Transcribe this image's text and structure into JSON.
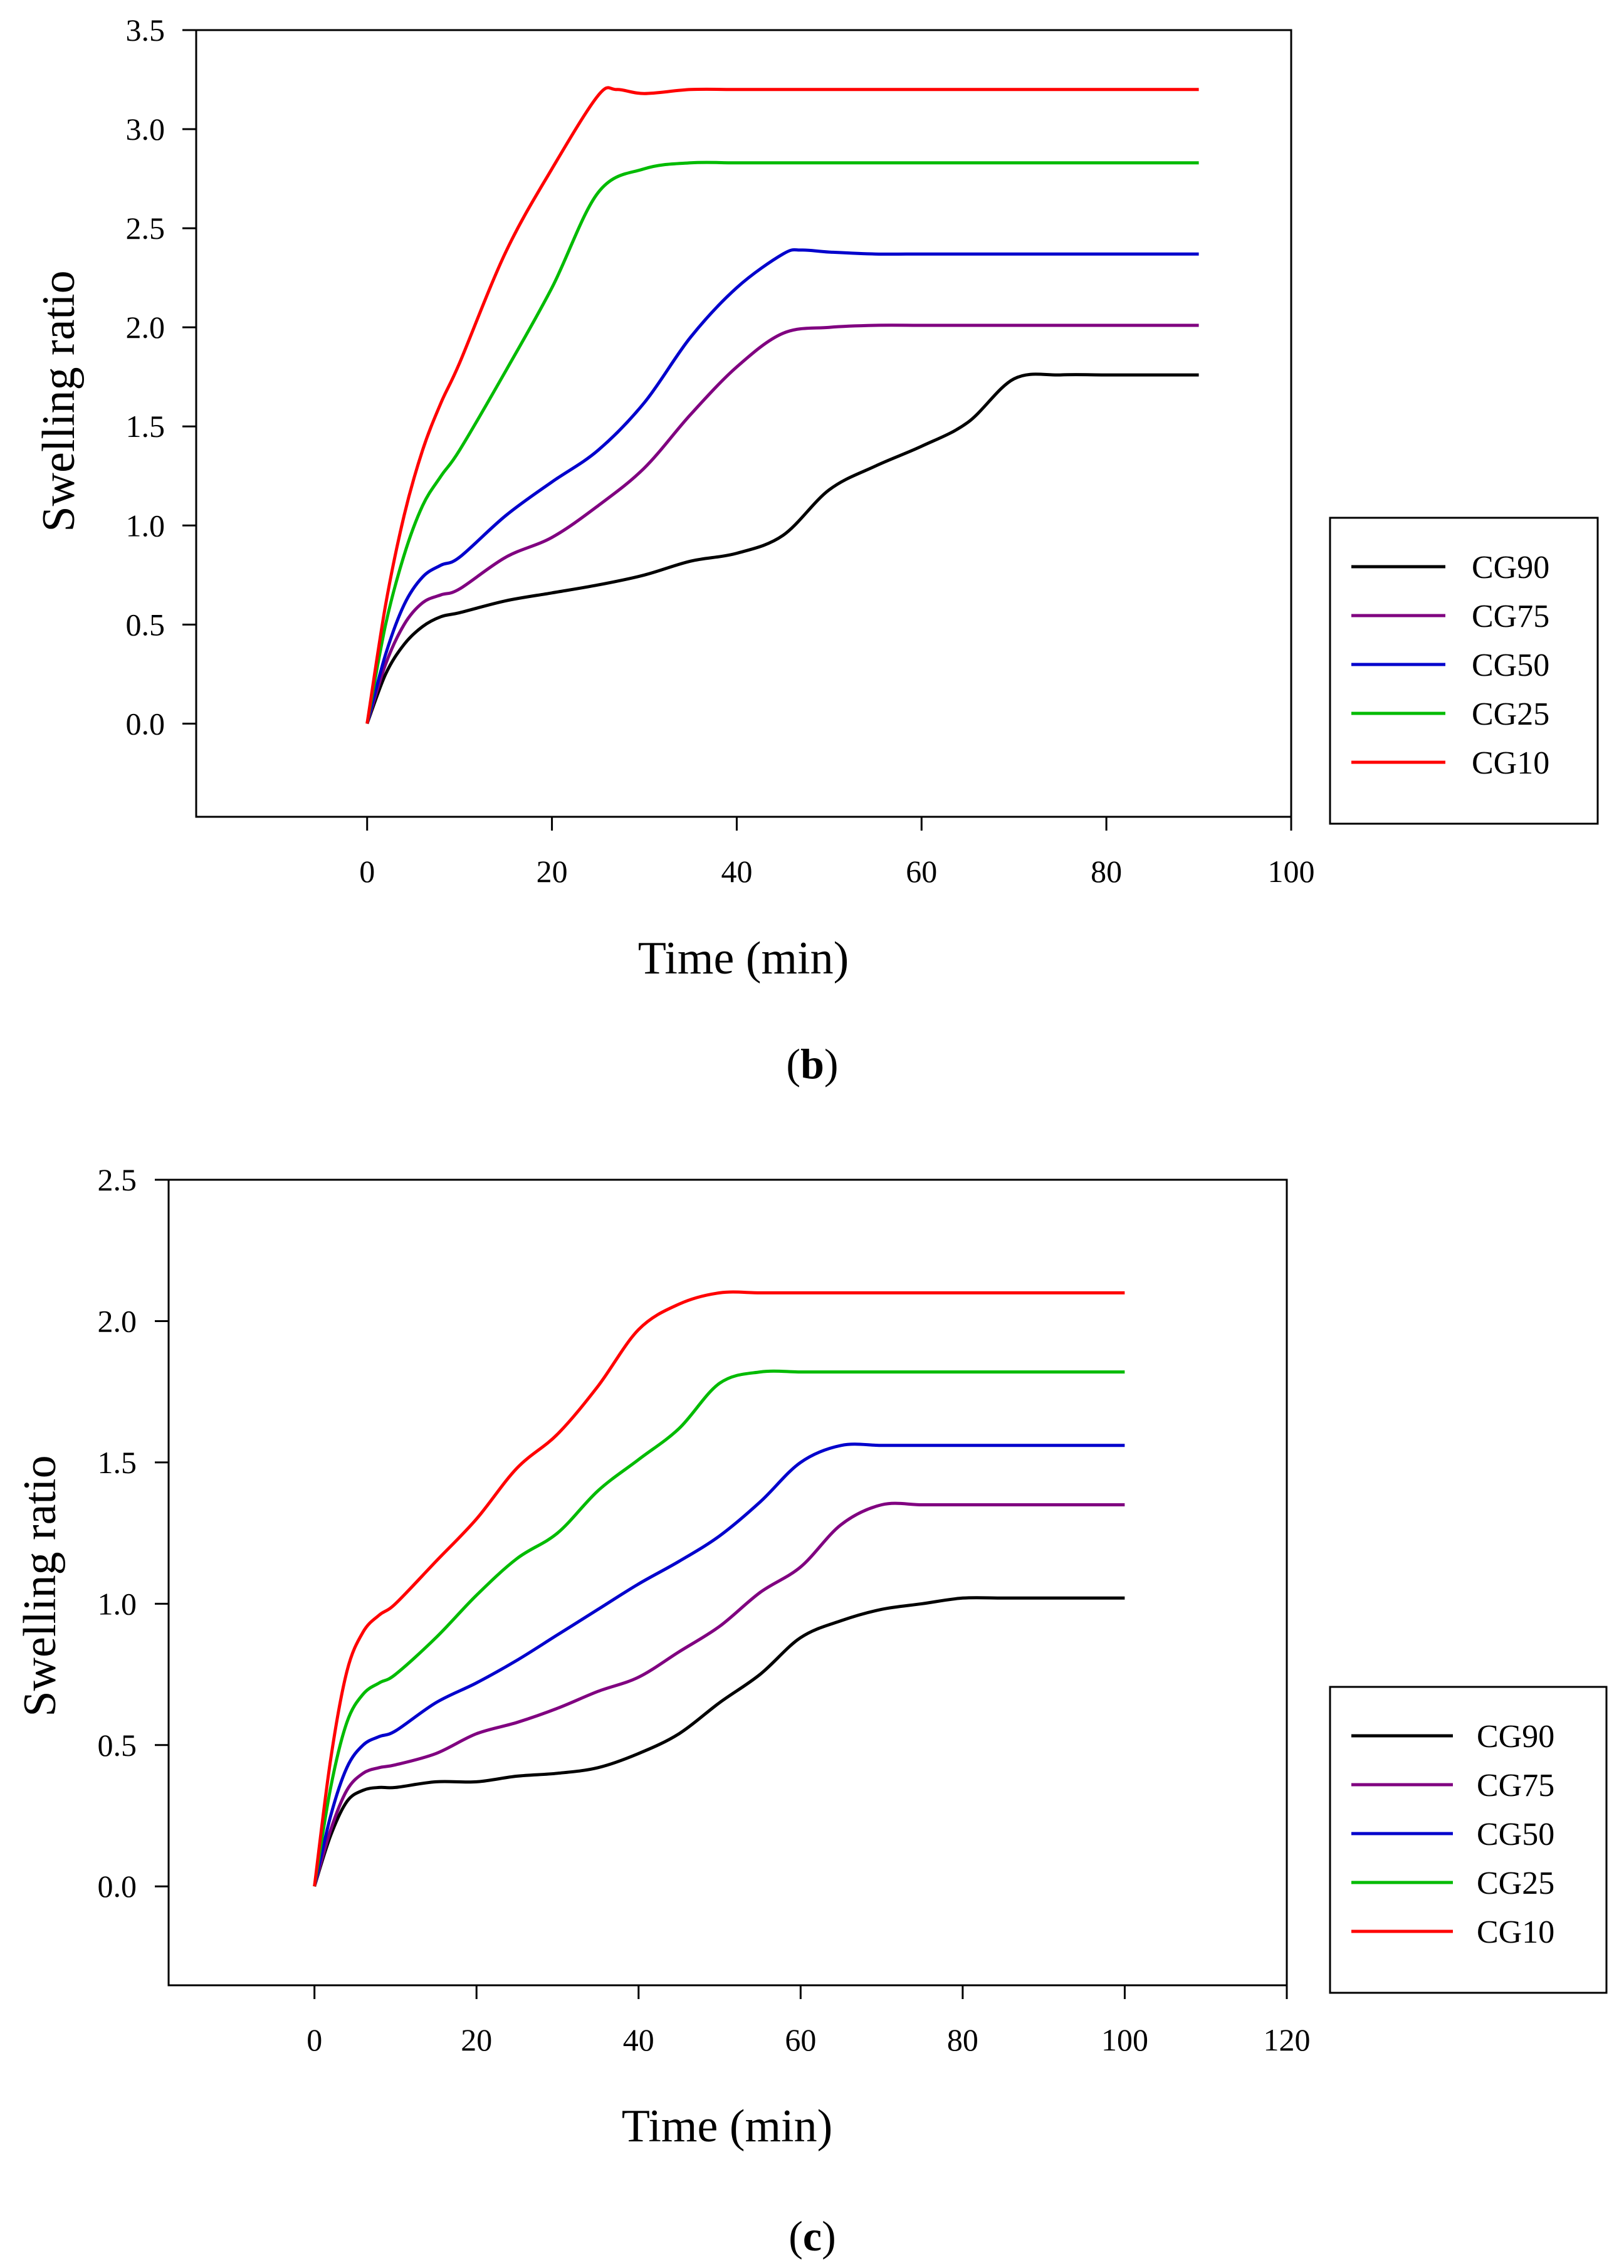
{
  "chart_data": [
    {
      "type": "line",
      "caption": "b",
      "xlabel": "Time (min)",
      "ylabel": "Swelling ratio",
      "xlim": [
        -18.5,
        100
      ],
      "ylim": [
        -0.47,
        3.5
      ],
      "x_ticks": [
        "0",
        "20",
        "40",
        "60",
        "80",
        "100"
      ],
      "y_ticks": [
        "0.0",
        "0.5",
        "1.0",
        "1.5",
        "2.0",
        "2.5",
        "3.0",
        "3.5"
      ],
      "grid": false,
      "legend_position": "right",
      "series": [
        {
          "name": "CG90",
          "color": "#000000",
          "x": [
            0,
            2,
            4,
            6,
            8,
            10,
            15,
            20,
            25,
            30,
            35,
            40,
            45,
            50,
            55,
            60,
            65,
            70,
            75,
            80,
            85,
            90
          ],
          "y": [
            0,
            0.25,
            0.4,
            0.49,
            0.54,
            0.56,
            0.62,
            0.66,
            0.7,
            0.75,
            0.82,
            0.86,
            0.95,
            1.18,
            1.3,
            1.4,
            1.52,
            1.74,
            1.76,
            1.76,
            1.76,
            1.76
          ]
        },
        {
          "name": "CG75",
          "color": "#800080",
          "x": [
            0,
            2,
            4,
            6,
            8,
            10,
            15,
            20,
            25,
            30,
            35,
            40,
            45,
            50,
            55,
            60,
            65,
            70,
            75,
            80,
            85,
            90
          ],
          "y": [
            0,
            0.3,
            0.5,
            0.61,
            0.65,
            0.68,
            0.84,
            0.94,
            1.1,
            1.29,
            1.56,
            1.8,
            1.97,
            2.0,
            2.01,
            2.01,
            2.01,
            2.01,
            2.01,
            2.01,
            2.01,
            2.01
          ]
        },
        {
          "name": "CG50",
          "color": "#0000cc",
          "x": [
            0,
            2,
            4,
            6,
            8,
            10,
            15,
            20,
            25,
            30,
            35,
            40,
            45,
            47,
            50,
            55,
            60,
            65,
            70,
            75,
            80,
            85,
            90
          ],
          "y": [
            0,
            0.35,
            0.6,
            0.74,
            0.8,
            0.84,
            1.05,
            1.22,
            1.38,
            1.62,
            1.95,
            2.2,
            2.37,
            2.39,
            2.38,
            2.37,
            2.37,
            2.37,
            2.37,
            2.37,
            2.37,
            2.37,
            2.37
          ]
        },
        {
          "name": "CG25",
          "color": "#00bb00",
          "x": [
            0,
            2,
            4,
            6,
            8,
            10,
            15,
            20,
            25,
            30,
            35,
            40,
            45,
            50,
            55,
            60,
            65,
            70,
            75,
            80,
            85,
            90
          ],
          "y": [
            0,
            0.5,
            0.85,
            1.1,
            1.25,
            1.38,
            1.78,
            2.2,
            2.68,
            2.8,
            2.83,
            2.83,
            2.83,
            2.83,
            2.83,
            2.83,
            2.83,
            2.83,
            2.83,
            2.83,
            2.83,
            2.83
          ]
        },
        {
          "name": "CG10",
          "color": "#ff0000",
          "x": [
            0,
            2,
            4,
            6,
            8,
            10,
            15,
            20,
            25,
            27,
            30,
            35,
            40,
            45,
            50,
            55,
            60,
            65,
            70,
            75,
            80,
            85,
            90
          ],
          "y": [
            0,
            0.6,
            1.05,
            1.38,
            1.62,
            1.82,
            2.38,
            2.8,
            3.17,
            3.2,
            3.18,
            3.2,
            3.2,
            3.2,
            3.2,
            3.2,
            3.2,
            3.2,
            3.2,
            3.2,
            3.2,
            3.2,
            3.2
          ]
        }
      ]
    },
    {
      "type": "line",
      "caption": "c",
      "xlabel": "Time (min)",
      "ylabel": "Swelling ratio",
      "xlim": [
        -18,
        120
      ],
      "ylim": [
        -0.35,
        2.5
      ],
      "x_ticks": [
        "0",
        "20",
        "40",
        "60",
        "80",
        "100",
        "120"
      ],
      "y_ticks": [
        "0.0",
        "0.5",
        "1.0",
        "1.5",
        "2.0",
        "2.5"
      ],
      "grid": false,
      "legend_position": "right",
      "series": [
        {
          "name": "CG90",
          "color": "#000000",
          "x": [
            0,
            2,
            4,
            6,
            8,
            10,
            15,
            20,
            25,
            30,
            35,
            40,
            45,
            50,
            55,
            60,
            65,
            70,
            75,
            80,
            85,
            90,
            95,
            100
          ],
          "y": [
            0,
            0.18,
            0.3,
            0.34,
            0.35,
            0.35,
            0.37,
            0.37,
            0.39,
            0.4,
            0.42,
            0.47,
            0.54,
            0.65,
            0.75,
            0.88,
            0.94,
            0.98,
            1.0,
            1.02,
            1.02,
            1.02,
            1.02,
            1.02
          ]
        },
        {
          "name": "CG75",
          "color": "#800080",
          "x": [
            0,
            2,
            4,
            6,
            8,
            10,
            15,
            20,
            25,
            30,
            35,
            40,
            45,
            50,
            55,
            60,
            65,
            70,
            75,
            80,
            85,
            90,
            95,
            100
          ],
          "y": [
            0,
            0.2,
            0.34,
            0.4,
            0.42,
            0.43,
            0.47,
            0.54,
            0.58,
            0.63,
            0.69,
            0.74,
            0.83,
            0.92,
            1.04,
            1.13,
            1.28,
            1.35,
            1.35,
            1.35,
            1.35,
            1.35,
            1.35,
            1.35
          ]
        },
        {
          "name": "CG50",
          "color": "#0000cc",
          "x": [
            0,
            2,
            4,
            6,
            8,
            10,
            15,
            20,
            25,
            30,
            35,
            40,
            45,
            50,
            55,
            60,
            65,
            70,
            75,
            80,
            85,
            90,
            95,
            100
          ],
          "y": [
            0,
            0.25,
            0.42,
            0.5,
            0.53,
            0.55,
            0.65,
            0.72,
            0.8,
            0.89,
            0.98,
            1.07,
            1.15,
            1.24,
            1.36,
            1.5,
            1.56,
            1.56,
            1.56,
            1.56,
            1.56,
            1.56,
            1.56,
            1.56
          ]
        },
        {
          "name": "CG25",
          "color": "#00bb00",
          "x": [
            0,
            2,
            4,
            6,
            8,
            10,
            15,
            20,
            25,
            30,
            35,
            40,
            45,
            50,
            55,
            60,
            65,
            70,
            75,
            80,
            85,
            90,
            95,
            100
          ],
          "y": [
            0,
            0.35,
            0.58,
            0.68,
            0.72,
            0.75,
            0.88,
            1.03,
            1.16,
            1.25,
            1.4,
            1.51,
            1.62,
            1.78,
            1.82,
            1.82,
            1.82,
            1.82,
            1.82,
            1.82,
            1.82,
            1.82,
            1.82,
            1.82
          ]
        },
        {
          "name": "CG10",
          "color": "#ff0000",
          "x": [
            0,
            2,
            4,
            6,
            8,
            10,
            15,
            20,
            25,
            30,
            35,
            40,
            45,
            50,
            55,
            60,
            65,
            70,
            75,
            80,
            85,
            90,
            95,
            100
          ],
          "y": [
            0,
            0.45,
            0.76,
            0.9,
            0.96,
            1.0,
            1.15,
            1.3,
            1.48,
            1.6,
            1.77,
            1.97,
            2.06,
            2.1,
            2.1,
            2.1,
            2.1,
            2.1,
            2.1,
            2.1,
            2.1,
            2.1,
            2.1,
            2.1
          ]
        }
      ]
    }
  ]
}
